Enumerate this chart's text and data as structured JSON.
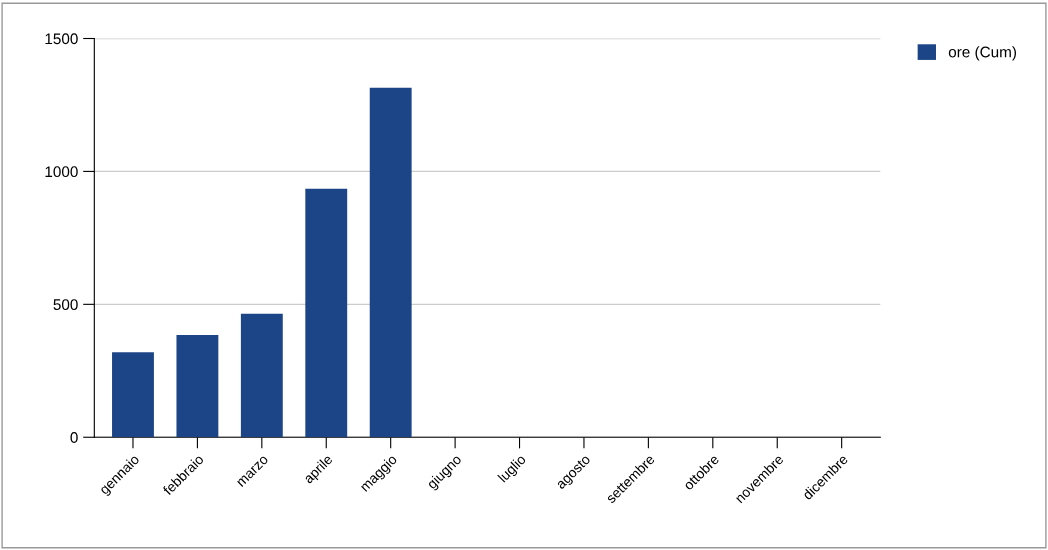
{
  "chart_data": {
    "type": "bar",
    "categories": [
      "gennaio",
      "febbraio",
      "marzo",
      "aprile",
      "maggio",
      "giugno",
      "luglio",
      "agosto",
      "settembre",
      "ottobre",
      "novembre",
      "dicembre"
    ],
    "series": [
      {
        "name": "ore (Cum)",
        "color": "#1c4587",
        "values": [
          320,
          385,
          465,
          935,
          1315,
          null,
          null,
          null,
          null,
          null,
          null,
          null
        ]
      }
    ],
    "ylim": [
      0,
      1500
    ],
    "yticks": [
      0,
      500,
      1000,
      1500
    ],
    "grid": "y",
    "legend": "top right"
  }
}
